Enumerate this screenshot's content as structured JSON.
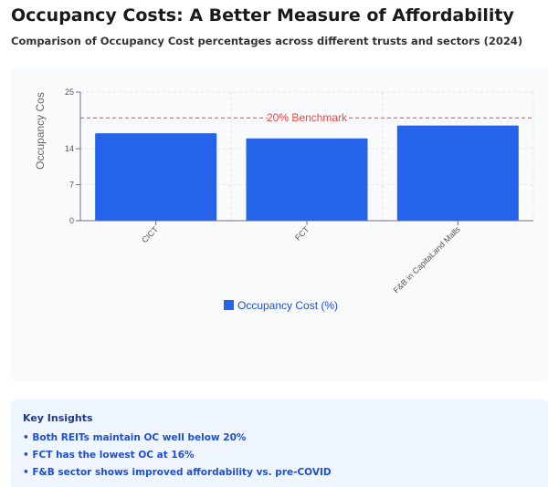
{
  "header": {
    "title": "Occupancy Costs: A Better Measure of Affordability",
    "subtitle": "Comparison of Occupancy Cost percentages across different trusts and sectors (2024)"
  },
  "chart_data": {
    "type": "bar",
    "categories": [
      "CICT",
      "FCT",
      "F&B in CapitaLand Malls"
    ],
    "series": [
      {
        "name": "Occupancy Cost (%)",
        "values": [
          17,
          16,
          18.5
        ],
        "color": "#2563eb"
      }
    ],
    "ylabel": "Occupancy Cos",
    "ylim": [
      0,
      25
    ],
    "yticks": [
      0,
      7,
      14,
      25
    ],
    "grid": true,
    "legend": "bottom-center",
    "reference_line": {
      "value": 20,
      "label": "20% Benchmark",
      "color": "#ef4444"
    }
  },
  "insights": {
    "title": "Key Insights",
    "items": [
      "• Both REITs maintain OC well below 20%",
      "• FCT has the lowest OC at 16%",
      "• F&B sector shows improved affordability vs. pre-COVID"
    ]
  }
}
